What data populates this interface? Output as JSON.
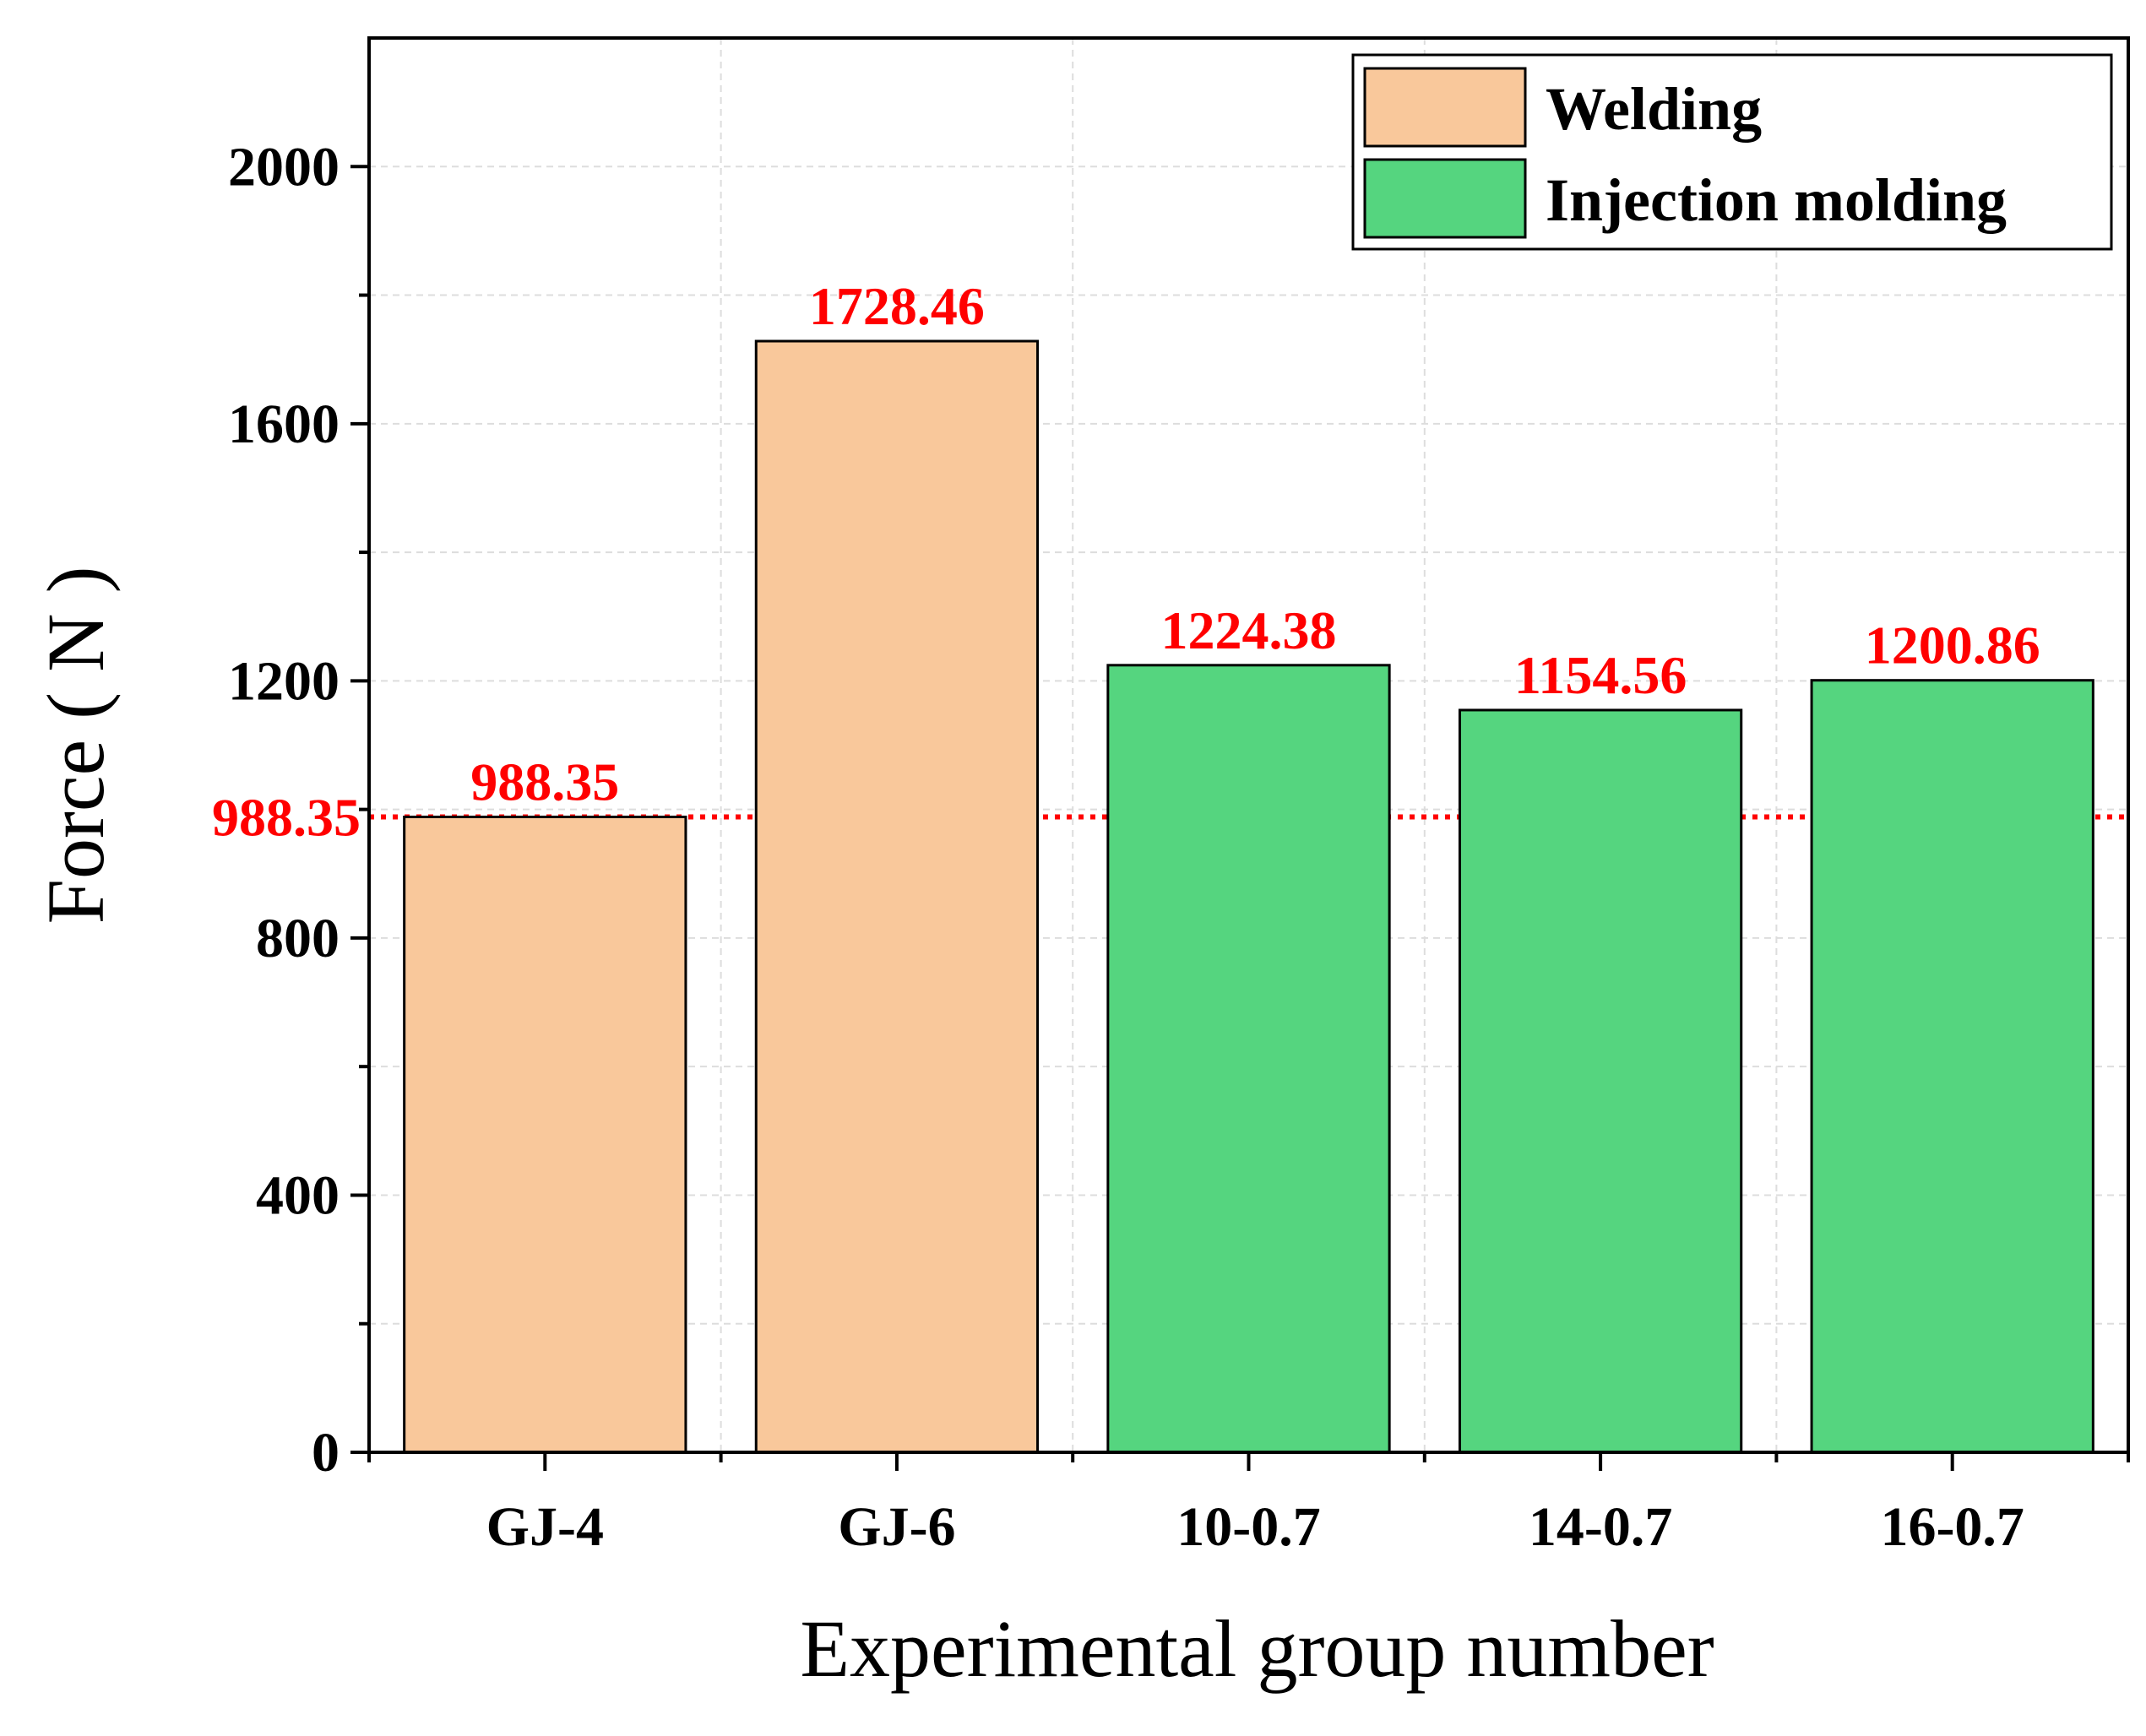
{
  "chart_data": {
    "type": "bar",
    "title": "",
    "xlabel": "Experimental group number",
    "ylabel": "Force ( N )",
    "ylim": [
      0,
      2200
    ],
    "yticks": [
      0,
      400,
      800,
      1200,
      1600,
      2000
    ],
    "yticks_minor": [
      200,
      600,
      1000,
      1400,
      1800
    ],
    "grid": true,
    "categories": [
      "GJ-4",
      "GJ-6",
      "10-0.7",
      "14-0.7",
      "16-0.7"
    ],
    "values": [
      988.35,
      1728.46,
      1224.38,
      1154.56,
      1200.86
    ],
    "value_labels": [
      "988.35",
      "1728.46",
      "1224.38",
      "1154.56",
      "1200.86"
    ],
    "bar_groups": [
      "Welding",
      "Welding",
      "Injection molding",
      "Injection molding",
      "Injection molding"
    ],
    "legend": {
      "position": "top-right",
      "entries": [
        {
          "name": "Welding",
          "color": "#F9C89B"
        },
        {
          "name": "Injection molding",
          "color": "#55D57F"
        }
      ]
    },
    "reference_line": {
      "value": 988.35,
      "label": "988.35",
      "color": "#FF0000",
      "style": "dotted"
    },
    "colors": {
      "label": "#FF0000",
      "axis": "#000000",
      "grid": "#DDDDDD"
    }
  }
}
